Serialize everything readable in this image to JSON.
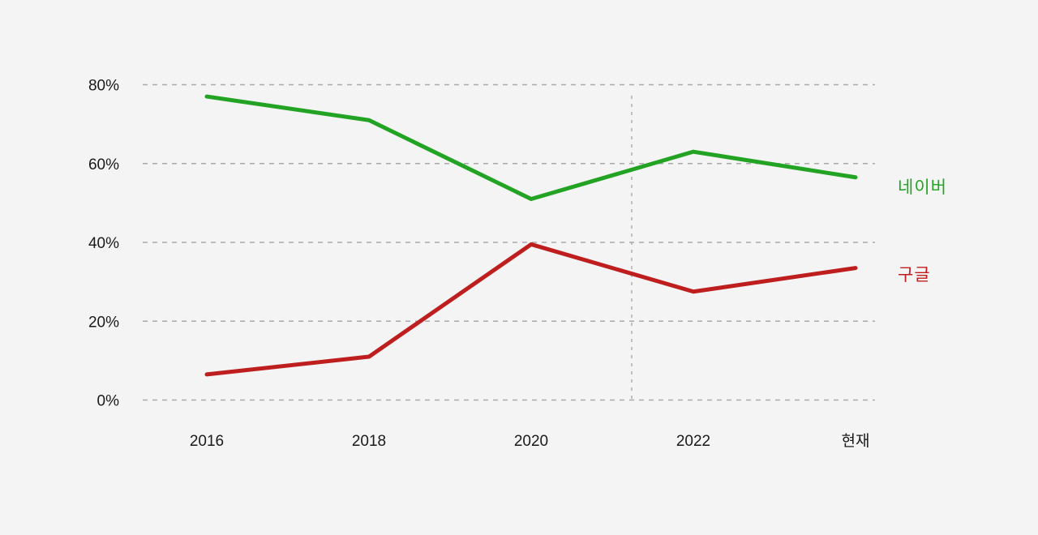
{
  "chart_data": {
    "type": "line",
    "title": "",
    "xlabel": "",
    "ylabel": "",
    "categories": [
      "2016",
      "2018",
      "2020",
      "2022",
      "현재"
    ],
    "series": [
      {
        "name": "네이버",
        "color": "#23a323",
        "values": [
          77,
          71,
          51,
          63,
          56.5
        ]
      },
      {
        "name": "구글",
        "color": "#bf1e1e",
        "values": [
          6.5,
          11,
          39.5,
          27.5,
          33.5
        ]
      }
    ],
    "ylim": [
      0,
      80
    ],
    "yticks": [
      0,
      20,
      40,
      60,
      80
    ],
    "ytick_labels": [
      "0%",
      "20%",
      "40%",
      "60%",
      "80%"
    ],
    "grid": "horizontal dashed gridlines at each 20% tick",
    "legend_position": "labels placed to the right of each line end",
    "annotations": [
      {
        "type": "vline",
        "x_index": 2.62,
        "note": "dashed vertical marker between 2020 and 2022"
      }
    ]
  },
  "colors": {
    "background": "#f4f4f4",
    "gridline": "#a9a9a9",
    "vline": "#b3b3b3",
    "axis_text": "#1a1a1a"
  }
}
